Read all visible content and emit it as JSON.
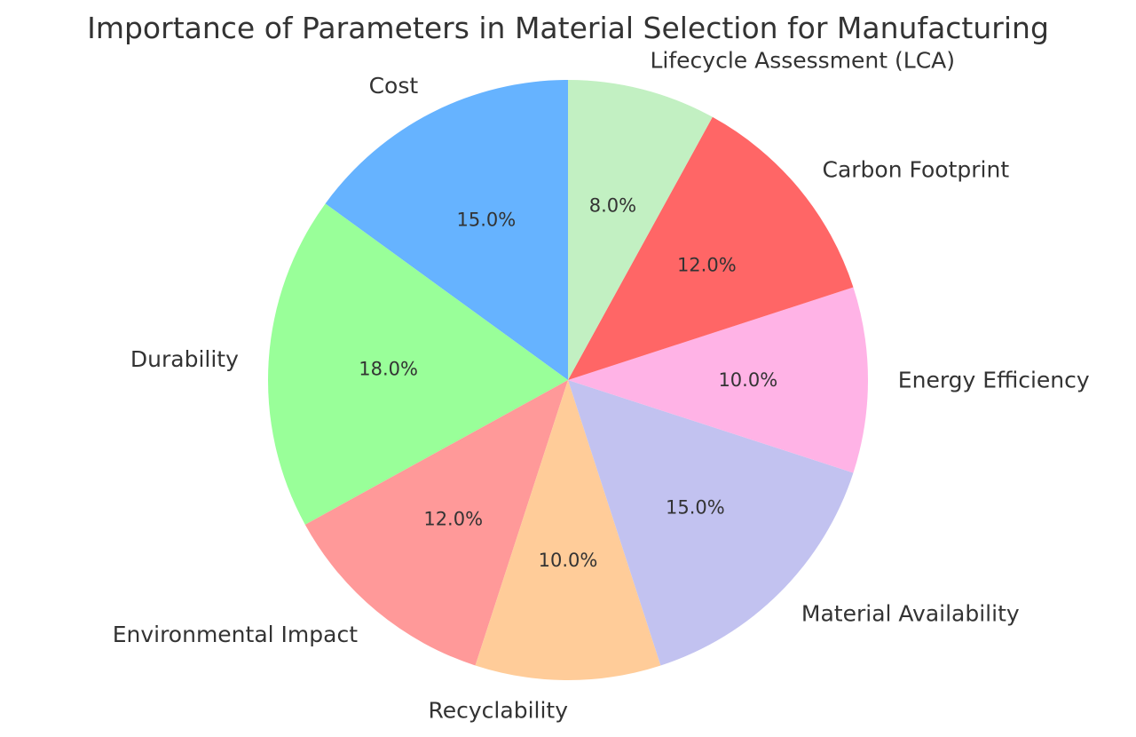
{
  "chart_data": {
    "type": "pie",
    "title": "Importance of Parameters in Material Selection for Manufacturing",
    "start_angle_deg": 90,
    "direction": "counterclockwise",
    "slices": [
      {
        "label": "Cost",
        "value": 15,
        "display": "15.0%",
        "color": "#66b3ff"
      },
      {
        "label": "Durability",
        "value": 18,
        "display": "18.0%",
        "color": "#99ff99"
      },
      {
        "label": "Environmental Impact",
        "value": 12,
        "display": "12.0%",
        "color": "#ff9999"
      },
      {
        "label": "Recyclability",
        "value": 10,
        "display": "10.0%",
        "color": "#ffcc99"
      },
      {
        "label": "Material Availability",
        "value": 15,
        "display": "15.0%",
        "color": "#c2c2f0"
      },
      {
        "label": "Energy Efficiency",
        "value": 10,
        "display": "10.0%",
        "color": "#ffb3e6"
      },
      {
        "label": "Carbon Footprint",
        "value": 12,
        "display": "12.0%",
        "color": "#ff6666"
      },
      {
        "label": "Lifecycle Assessment (LCA)",
        "value": 8,
        "display": "8.0%",
        "color": "#c2f0c2"
      }
    ]
  }
}
